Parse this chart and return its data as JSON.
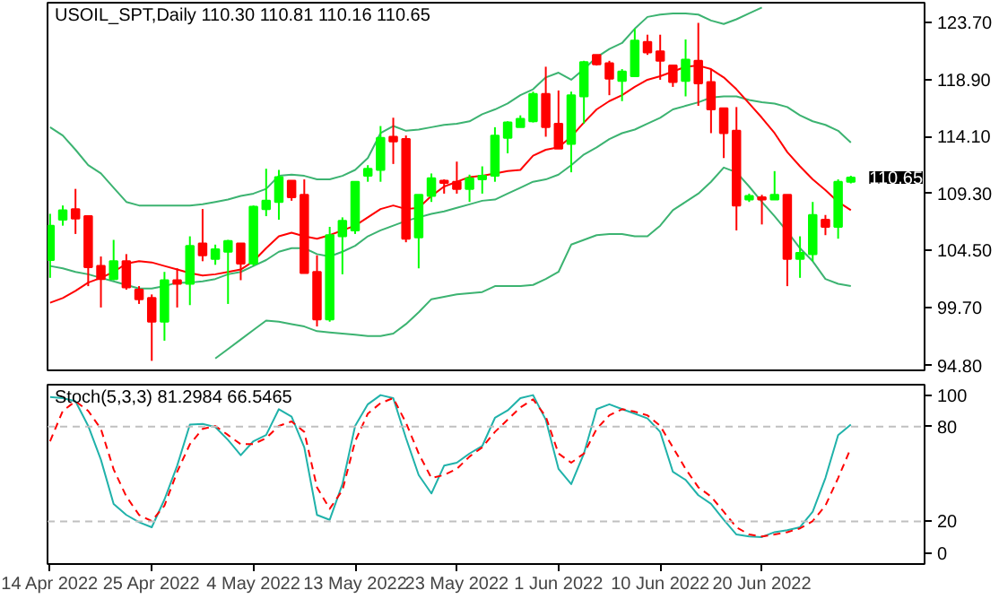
{
  "chart_data": [
    {
      "type": "candlestick",
      "title": "USOIL_SPT,Daily 110.30 110.81 110.16 110.65",
      "categories": [
        null,
        null,
        null,
        null,
        null,
        null,
        null,
        null,
        null,
        null,
        null,
        null,
        null,
        null,
        null,
        null,
        null,
        null,
        null,
        null,
        null,
        null,
        null,
        null,
        null,
        null,
        null,
        null,
        null,
        null,
        null,
        null,
        null,
        null,
        null,
        null,
        null,
        null,
        null,
        null,
        null,
        null,
        null,
        null,
        null,
        null,
        null,
        null,
        null,
        null,
        null,
        null,
        null,
        null,
        null,
        null,
        null,
        null,
        null,
        null,
        null,
        null,
        null,
        null
      ],
      "ohlc": [
        [
          103.7,
          107.6,
          102.2,
          106.6
        ],
        [
          107.1,
          108.3,
          106.6,
          107.9
        ],
        [
          108.0,
          109.7,
          105.9,
          107.2
        ],
        [
          107.4,
          107.4,
          101.5,
          103.1
        ],
        [
          103.2,
          104.0,
          99.7,
          102.1
        ],
        [
          102.1,
          105.4,
          102.0,
          103.6
        ],
        [
          103.6,
          104.2,
          101.2,
          101.4
        ],
        [
          101.2,
          101.5,
          100.0,
          100.4
        ],
        [
          100.5,
          100.8,
          95.2,
          98.5
        ],
        [
          98.5,
          102.7,
          96.9,
          102.0
        ],
        [
          102.0,
          103.0,
          99.7,
          101.7
        ],
        [
          101.7,
          105.7,
          99.9,
          104.9
        ],
        [
          105.1,
          108.0,
          103.6,
          104.1
        ],
        [
          103.8,
          105.0,
          103.3,
          104.6
        ],
        [
          104.4,
          105.4,
          100.0,
          105.3
        ],
        [
          105.1,
          105.1,
          102.0,
          103.4
        ],
        [
          103.4,
          108.3,
          103.2,
          108.2
        ],
        [
          108.0,
          111.4,
          107.4,
          108.7
        ],
        [
          108.6,
          111.3,
          107.1,
          110.7
        ],
        [
          110.4,
          110.4,
          108.7,
          109.0
        ],
        [
          109.2,
          110.5,
          102.6,
          102.6
        ],
        [
          102.7,
          104.1,
          98.1,
          98.7
        ],
        [
          98.7,
          106.5,
          98.5,
          105.8
        ],
        [
          105.7,
          107.3,
          102.5,
          107.0
        ],
        [
          106.2,
          110.3,
          105.9,
          110.3
        ],
        [
          110.8,
          111.7,
          110.3,
          111.4
        ],
        [
          111.3,
          115.0,
          110.3,
          114.0
        ],
        [
          114.1,
          115.7,
          111.8,
          113.7
        ],
        [
          113.9,
          114.2,
          105.2,
          105.5
        ],
        [
          105.6,
          109.2,
          103.0,
          109.2
        ],
        [
          109.1,
          111.0,
          108.6,
          110.6
        ],
        [
          110.4,
          110.5,
          109.3,
          110.2
        ],
        [
          110.3,
          112.0,
          109.3,
          109.7
        ],
        [
          109.7,
          110.9,
          108.6,
          110.6
        ],
        [
          110.5,
          111.6,
          109.3,
          110.8
        ],
        [
          110.8,
          114.9,
          110.3,
          114.2
        ],
        [
          114.0,
          115.4,
          112.7,
          115.3
        ],
        [
          114.9,
          115.9,
          114.9,
          115.6
        ],
        [
          115.4,
          117.9,
          115.3,
          117.7
        ],
        [
          117.7,
          120.0,
          114.1,
          114.9
        ],
        [
          115.2,
          118.0,
          113.1,
          113.1
        ],
        [
          113.5,
          117.9,
          111.1,
          117.6
        ],
        [
          117.5,
          120.5,
          115.2,
          120.4
        ],
        [
          121.0,
          121.0,
          120.1,
          120.2
        ],
        [
          120.3,
          120.5,
          117.6,
          119.0
        ],
        [
          118.8,
          119.8,
          117.1,
          119.6
        ],
        [
          119.2,
          123.2,
          119.2,
          122.2
        ],
        [
          122.1,
          122.7,
          121.0,
          121.2
        ],
        [
          121.3,
          122.7,
          118.9,
          120.5
        ],
        [
          120.1,
          120.1,
          118.3,
          118.7
        ],
        [
          118.8,
          122.3,
          117.5,
          120.6
        ],
        [
          120.5,
          123.7,
          116.7,
          118.6
        ],
        [
          118.7,
          119.8,
          114.4,
          116.4
        ],
        [
          116.5,
          116.5,
          112.3,
          114.4
        ],
        [
          114.6,
          116.6,
          106.2,
          108.3
        ],
        [
          108.8,
          109.3,
          108.6,
          109.1
        ],
        [
          109.0,
          109.2,
          106.7,
          108.8
        ],
        [
          108.8,
          111.2,
          108.8,
          109.2
        ],
        [
          109.2,
          109.2,
          101.5,
          103.8
        ],
        [
          103.8,
          105.7,
          102.2,
          104.3
        ],
        [
          104.2,
          108.6,
          103.6,
          107.5
        ],
        [
          107.1,
          107.5,
          105.8,
          106.5
        ],
        [
          106.5,
          110.5,
          105.5,
          110.3
        ],
        [
          110.3,
          110.81,
          110.16,
          110.65
        ]
      ],
      "colors": [
        "#00ff00",
        "#00ff00",
        "#ff0000",
        "#ff0000",
        "#ff0000",
        "#00ff00",
        "#ff0000",
        "#ff0000",
        "#ff0000",
        "#00ff00",
        "#ff0000",
        "#00ff00",
        "#ff0000",
        "#00ff00",
        "#00ff00",
        "#ff0000",
        "#00ff00",
        "#00ff00",
        "#00ff00",
        "#ff0000",
        "#ff0000",
        "#ff0000",
        "#00ff00",
        "#00ff00",
        "#00ff00",
        "#00ff00",
        "#00ff00",
        "#ff0000",
        "#ff0000",
        "#00ff00",
        "#00ff00",
        "#ff0000",
        "#ff0000",
        "#00ff00",
        "#00ff00",
        "#00ff00",
        "#00ff00",
        "#00ff00",
        "#00ff00",
        "#ff0000",
        "#ff0000",
        "#00ff00",
        "#00ff00",
        "#ff0000",
        "#ff0000",
        "#00ff00",
        "#00ff00",
        "#ff0000",
        "#ff0000",
        "#ff0000",
        "#00ff00",
        "#ff0000",
        "#ff0000",
        "#ff0000",
        "#ff0000",
        "#00ff00",
        "#ff0000",
        "#00ff00",
        "#ff0000",
        "#00ff00",
        "#00ff00",
        "#ff0000",
        "#00ff00",
        "#00ff00"
      ],
      "series": [
        {
          "type": "line",
          "color": "#3cb371",
          "values": [
            114.9,
            114.2,
            113.0,
            111.7,
            111.0,
            109.8,
            108.6,
            108.3,
            108.3,
            108.3,
            108.3,
            108.3,
            108.4,
            108.6,
            108.8,
            109.1,
            109.3,
            109.7,
            110.8,
            110.9,
            110.8,
            110.5,
            110.5,
            110.8,
            111.3,
            112.3,
            114.4,
            115.0,
            114.6,
            114.7,
            114.9,
            115.1,
            115.2,
            115.4,
            116.0,
            116.4,
            116.9,
            117.6,
            118.1,
            119.1,
            119.5,
            118.9,
            119.8,
            120.8,
            121.5,
            122.0,
            123.2,
            124.2,
            124.4,
            124.5,
            124.5,
            124.4,
            123.9,
            123.6,
            124.0,
            124.5,
            125.0,
            null,
            null,
            null,
            null,
            null,
            null,
            null
          ]
        },
        {
          "type": "line",
          "color": "#3cb371",
          "values": [
            103.2,
            103.0,
            102.7,
            102.5,
            102.2,
            101.9,
            101.6,
            101.3,
            101.3,
            101.5,
            101.8,
            101.8,
            101.9,
            102.1,
            102.5,
            102.7,
            103.2,
            103.7,
            104.4,
            104.7,
            104.7,
            104.2,
            104.0,
            104.4,
            104.9,
            105.7,
            106.2,
            106.6,
            107.0,
            107.3,
            107.6,
            107.8,
            108.1,
            108.4,
            108.7,
            108.8,
            109.3,
            109.8,
            110.3,
            110.5,
            110.9,
            111.7,
            112.6,
            113.2,
            113.9,
            114.4,
            114.7,
            115.2,
            115.7,
            116.4,
            116.7,
            117.0,
            117.4,
            117.5,
            117.5,
            117.2,
            117.0,
            116.9,
            116.6,
            115.9,
            115.4,
            115.1,
            114.6,
            113.6
          ]
        },
        {
          "type": "line",
          "color": "#3cb371",
          "values": [
            null,
            null,
            null,
            null,
            null,
            null,
            null,
            null,
            null,
            null,
            null,
            null,
            null,
            95.4,
            96.2,
            97.0,
            97.8,
            98.6,
            98.5,
            98.3,
            98.1,
            97.7,
            97.6,
            97.5,
            97.4,
            97.3,
            97.3,
            97.5,
            98.3,
            99.3,
            100.4,
            100.6,
            100.8,
            100.9,
            101.0,
            101.5,
            101.5,
            101.5,
            101.6,
            102.1,
            102.7,
            105.0,
            105.4,
            105.8,
            105.9,
            105.9,
            105.7,
            105.7,
            106.6,
            107.9,
            108.6,
            109.3,
            110.3,
            111.5,
            111.1,
            109.9,
            108.6,
            107.4,
            106.1,
            104.7,
            103.6,
            102.1,
            101.7,
            101.5
          ]
        },
        {
          "type": "line",
          "color": "#ff0000",
          "values": [
            100.1,
            100.5,
            101.1,
            101.8,
            102.2,
            102.7,
            103.4,
            103.6,
            103.5,
            103.2,
            102.9,
            102.6,
            102.4,
            102.5,
            102.7,
            102.9,
            103.6,
            104.7,
            105.7,
            106.0,
            105.7,
            105.5,
            105.8,
            106.2,
            106.6,
            107.3,
            108.0,
            108.3,
            108.0,
            108.1,
            109.1,
            109.9,
            110.3,
            110.7,
            110.8,
            111.0,
            111.2,
            111.3,
            112.5,
            113.0,
            113.2,
            114.1,
            115.3,
            116.4,
            117.1,
            117.6,
            118.3,
            118.9,
            119.2,
            119.6,
            120.0,
            120.1,
            119.8,
            119.1,
            118.1,
            116.9,
            115.7,
            114.4,
            112.8,
            111.6,
            110.5,
            109.6,
            108.6,
            107.9
          ]
        }
      ],
      "ylim": [
        94.4,
        125.4
      ],
      "yticks": [
        {
          "value": 94.8,
          "label": "94.80"
        },
        {
          "value": 99.7,
          "label": "99.70"
        },
        {
          "value": 104.5,
          "label": "104.50"
        },
        {
          "value": 109.3,
          "label": "109.30"
        },
        {
          "value": 114.1,
          "label": "114.10"
        },
        {
          "value": 118.9,
          "label": "118.90"
        },
        {
          "value": 123.7,
          "label": "123.70"
        }
      ],
      "annotations": [
        "110.65"
      ],
      "tick_labels": "y"
    },
    {
      "type": "line",
      "title": "Stoch(5,3,3) 81.2984 66.5465",
      "categories": [
        "14 Apr 2022",
        null,
        null,
        null,
        null,
        null,
        null,
        null,
        "25 Apr 2022",
        null,
        null,
        null,
        null,
        null,
        null,
        null,
        "4 May 2022",
        null,
        null,
        null,
        null,
        null,
        null,
        null,
        "13 May 2022",
        null,
        null,
        null,
        null,
        null,
        null,
        null,
        "23 May 2022",
        null,
        null,
        null,
        null,
        null,
        null,
        null,
        "1 Jun 2022",
        null,
        null,
        null,
        null,
        null,
        null,
        null,
        "10 Jun 2022",
        null,
        null,
        null,
        null,
        null,
        null,
        null,
        "20 Jun 2022",
        null,
        null,
        null,
        null,
        null,
        null,
        null
      ],
      "series": [
        {
          "color": "#20b2aa",
          "values": [
            98.8,
            98.1,
            96.1,
            80.5,
            59.1,
            31.1,
            24.1,
            19.5,
            16.3,
            33.9,
            55.3,
            81.3,
            81.7,
            79.8,
            71.6,
            61.9,
            70.8,
            74.7,
            91.1,
            86.4,
            66.9,
            24.1,
            21.0,
            43.6,
            80.5,
            94.2,
            100,
            98.1,
            72.8,
            49.4,
            37.7,
            55.3,
            57.2,
            63.0,
            67.7,
            85.6,
            90.3,
            98.1,
            100,
            84.4,
            53.3,
            43.6,
            63.0,
            91.1,
            94.2,
            91.1,
            88.3,
            85.2,
            76.7,
            51.4,
            46.3,
            36.6,
            31.1,
            21.0,
            11.7,
            10.5,
            10.1,
            13.2,
            14.4,
            16.3,
            26.1,
            47.5,
            74.7,
            81.3
          ]
        },
        {
          "color": "#ff0000",
          "line_style": "dashed",
          "values": [
            70.8,
            90.0,
            96.1,
            90.0,
            78.6,
            53.0,
            35.8,
            24.1,
            20.2,
            30.0,
            51.4,
            68.9,
            78.6,
            80.5,
            74.7,
            68.9,
            68.9,
            72.8,
            80.5,
            83.3,
            76.7,
            41.6,
            28.0,
            39.7,
            70.8,
            88.3,
            94.9,
            98.1,
            82.5,
            63.0,
            47.5,
            49.4,
            53.3,
            61.1,
            66.9,
            76.7,
            84.4,
            92.2,
            97.3,
            86.4,
            63.0,
            57.2,
            63.0,
            78.6,
            87.2,
            91.1,
            89.5,
            87.2,
            80.5,
            66.9,
            53.3,
            41.6,
            35.8,
            26.1,
            16.3,
            11.7,
            10.5,
            11.7,
            13.2,
            15.6,
            20.2,
            30.0,
            47.5,
            66.5
          ]
        }
      ],
      "ylim": [
        -7,
        106.6
      ],
      "yticks": [
        0,
        20,
        80,
        100
      ],
      "ref_lines": [
        {
          "axis": "y",
          "value": 20,
          "color": "#c0c0c0",
          "line_style": "dashed"
        },
        {
          "axis": "y",
          "value": 80,
          "color": "#c0c0c0",
          "line_style": "dashed"
        }
      ]
    }
  ]
}
